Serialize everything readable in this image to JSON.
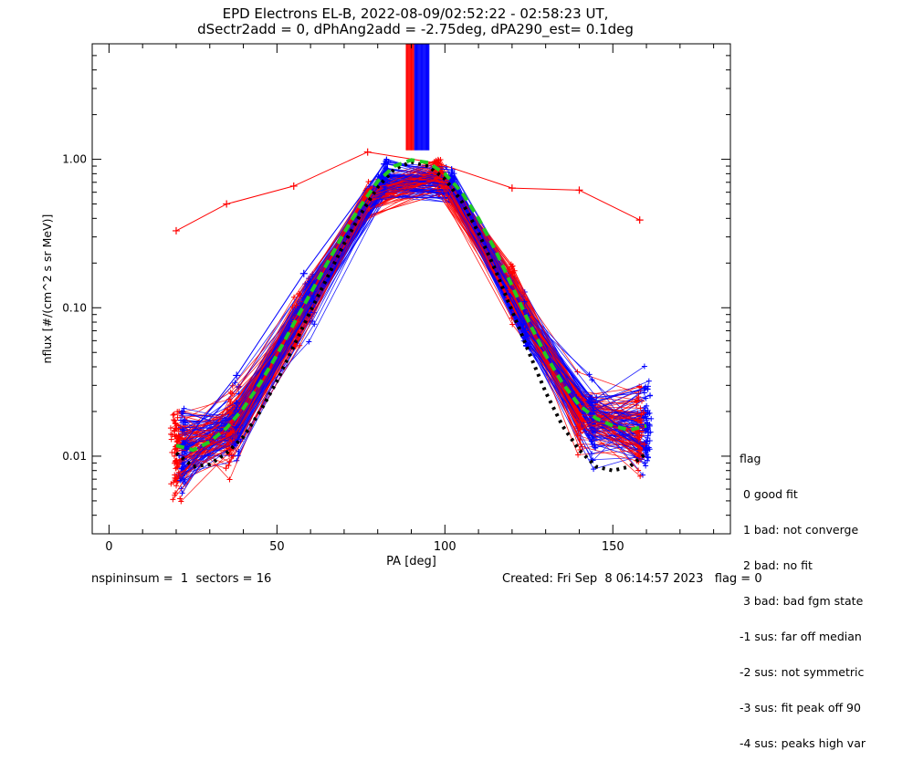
{
  "title_line1": "EPD Electrons EL-B, 2022-08-09/02:52:22 - 02:58:23 UT,",
  "title_line2": "dSectr2add = 0, dPhAng2add = -2.75deg, dPA290_est=   0.1deg",
  "footer": {
    "left": "nspininsum =  1  sectors = 16",
    "right": "Created: Fri Sep  8 06:14:57 2023   flag = 0"
  },
  "legend": {
    "title": "flag",
    "items": [
      " 0 good fit",
      " 1 bad: not converge",
      " 2 bad: no fit",
      " 3 bad: bad fgm state",
      "-1 sus: far off median",
      "-2 sus: not symmetric",
      "-3 sus: fit peak off 90",
      "-4 sus: peaks high var"
    ]
  },
  "chart_data": {
    "type": "line",
    "title": "EPD Electrons EL-B, 2022-08-09/02:52:22 - 02:58:23 UT,",
    "xlabel": "PA [deg]",
    "ylabel": "nflux [#/(cm^2 s sr MeV)]",
    "xlim": [
      -5,
      185
    ],
    "ylim": [
      0.003,
      6.0
    ],
    "yscale": "log",
    "xticks": [
      0,
      50,
      100,
      150
    ],
    "xtick_labels": [
      "0",
      "50",
      "100",
      "150"
    ],
    "yticks": [
      0.01,
      0.1,
      1.0
    ],
    "ytick_labels": [
      "0.01",
      "0.10",
      "1.00"
    ],
    "grid": false,
    "series": [
      {
        "color": "#ff0000",
        "style": "line-plus",
        "x": [
          20,
          35,
          55,
          77,
          98,
          120,
          140,
          158
        ],
        "y": [
          0.33,
          0.5,
          0.66,
          1.12,
          0.94,
          0.64,
          0.62,
          0.39
        ]
      },
      {
        "color": "#0000ff",
        "style": "line-plus",
        "x": [
          22,
          38,
          58,
          82,
          102,
          124,
          144,
          160
        ],
        "y": [
          0.012,
          0.035,
          0.17,
          0.93,
          0.85,
          0.07,
          0.022,
          0.011
        ]
      },
      {
        "color": "#000000",
        "style": "dotted",
        "x": [
          20,
          25,
          30,
          35,
          40,
          45,
          50,
          55,
          60,
          65,
          70,
          75,
          80,
          85,
          90,
          95,
          100,
          105,
          110,
          115,
          120,
          125,
          130,
          135,
          140,
          145,
          150,
          155,
          160
        ],
        "y": [
          0.0105,
          0.0085,
          0.0088,
          0.0105,
          0.0135,
          0.02,
          0.032,
          0.055,
          0.095,
          0.16,
          0.27,
          0.43,
          0.65,
          0.86,
          0.96,
          0.9,
          0.74,
          0.52,
          0.32,
          0.18,
          0.095,
          0.05,
          0.027,
          0.016,
          0.011,
          0.0085,
          0.008,
          0.0085,
          0.0105
        ]
      },
      {
        "color": "#22cc22",
        "style": "dashed",
        "x": [
          20,
          25,
          30,
          35,
          40,
          45,
          50,
          55,
          60,
          65,
          70,
          75,
          80,
          85,
          90,
          95,
          100,
          105,
          110,
          115,
          120,
          125,
          130,
          135,
          140,
          145,
          150,
          155,
          160
        ],
        "y": [
          0.0118,
          0.011,
          0.0125,
          0.0155,
          0.021,
          0.031,
          0.048,
          0.078,
          0.125,
          0.2,
          0.32,
          0.49,
          0.71,
          0.9,
          0.99,
          0.95,
          0.8,
          0.6,
          0.4,
          0.245,
          0.14,
          0.08,
          0.048,
          0.031,
          0.022,
          0.018,
          0.016,
          0.015,
          0.016
        ]
      }
    ]
  }
}
